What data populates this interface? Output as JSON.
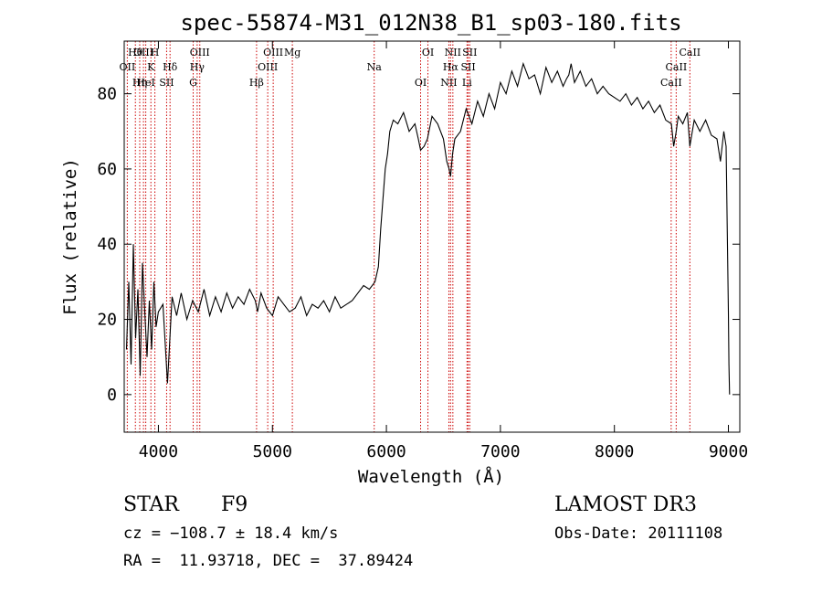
{
  "chart_data": {
    "type": "line",
    "title": "spec-55874-M31_012N38_B1_sp03-180.fits",
    "xlabel": "Wavelength (Å)",
    "ylabel": "Flux (relative)",
    "xlim": [
      3700,
      9100
    ],
    "ylim": [
      -10,
      94
    ],
    "xticks": [
      4000,
      5000,
      6000,
      7000,
      8000,
      9000
    ],
    "yticks": [
      0,
      20,
      40,
      60,
      80
    ],
    "series": [
      {
        "name": "flux",
        "x": [
          3720,
          3740,
          3760,
          3780,
          3800,
          3820,
          3840,
          3860,
          3880,
          3900,
          3920,
          3940,
          3960,
          3980,
          4000,
          4040,
          4080,
          4120,
          4160,
          4200,
          4250,
          4300,
          4350,
          4400,
          4450,
          4500,
          4550,
          4600,
          4650,
          4700,
          4750,
          4800,
          4850,
          4870,
          4900,
          4950,
          5000,
          5050,
          5100,
          5150,
          5200,
          5250,
          5300,
          5350,
          5400,
          5450,
          5500,
          5550,
          5600,
          5650,
          5700,
          5750,
          5800,
          5850,
          5900,
          5930,
          5950,
          5970,
          5990,
          6010,
          6030,
          6060,
          6100,
          6150,
          6200,
          6250,
          6280,
          6300,
          6330,
          6360,
          6400,
          6450,
          6500,
          6530,
          6550,
          6563,
          6580,
          6600,
          6650,
          6700,
          6750,
          6800,
          6850,
          6900,
          6950,
          7000,
          7050,
          7100,
          7150,
          7200,
          7250,
          7300,
          7350,
          7400,
          7450,
          7500,
          7550,
          7580,
          7600,
          7620,
          7650,
          7700,
          7750,
          7800,
          7850,
          7900,
          7950,
          8000,
          8050,
          8100,
          8150,
          8200,
          8250,
          8300,
          8350,
          8400,
          8450,
          8500,
          8520,
          8542,
          8560,
          8600,
          8640,
          8662,
          8700,
          8750,
          8800,
          8850,
          8900,
          8930,
          8960,
          8980,
          9000,
          9005,
          9010
        ],
        "values": [
          12,
          30,
          8,
          40,
          15,
          28,
          5,
          35,
          22,
          10,
          25,
          12,
          30,
          18,
          22,
          24,
          3,
          26,
          21,
          27,
          20,
          25,
          22,
          28,
          21,
          26,
          22,
          27,
          23,
          26,
          24,
          28,
          25,
          22,
          27,
          23,
          21,
          26,
          24,
          22,
          23,
          26,
          21,
          24,
          23,
          25,
          22,
          26,
          23,
          24,
          25,
          27,
          29,
          28,
          30,
          34,
          44,
          52,
          60,
          64,
          70,
          73,
          72,
          75,
          70,
          72,
          68,
          65,
          66,
          68,
          74,
          72,
          68,
          62,
          60,
          58,
          64,
          68,
          70,
          76,
          72,
          78,
          74,
          80,
          76,
          83,
          80,
          86,
          82,
          88,
          84,
          85,
          80,
          87,
          83,
          86,
          82,
          84,
          85,
          88,
          83,
          86,
          82,
          84,
          80,
          82,
          80,
          79,
          78,
          80,
          77,
          79,
          76,
          78,
          75,
          77,
          73,
          72,
          66,
          70,
          74,
          72,
          75,
          66,
          73,
          70,
          73,
          69,
          68,
          62,
          70,
          66,
          22,
          8,
          0
        ],
        "color": "#000000"
      }
    ],
    "reference_lines": [
      {
        "label": "Hθ",
        "wavelength": 3798
      },
      {
        "label": "OII",
        "wavelength": 3727
      },
      {
        "label": "Hη",
        "wavelength": 3836
      },
      {
        "label": "OIII",
        "wavelength": 3869
      },
      {
        "label": "K",
        "wavelength": 3934
      },
      {
        "label": "HeI",
        "wavelength": 3889
      },
      {
        "label": "H",
        "wavelength": 3969
      },
      {
        "label": "Hδ",
        "wavelength": 4102
      },
      {
        "label": "SII",
        "wavelength": 4072
      },
      {
        "label": "OIII",
        "wavelength": 4363
      },
      {
        "label": "Hγ",
        "wavelength": 4340
      },
      {
        "label": "G",
        "wavelength": 4305
      },
      {
        "label": "OIII",
        "wavelength": 5007
      },
      {
        "label": "OIII",
        "wavelength": 4959
      },
      {
        "label": "Hβ",
        "wavelength": 4861
      },
      {
        "label": "Mg",
        "wavelength": 5175
      },
      {
        "label": "Na",
        "wavelength": 5893
      },
      {
        "label": "OI",
        "wavelength": 6300
      },
      {
        "label": "OI",
        "wavelength": 6364
      },
      {
        "label": "Hα",
        "wavelength": 6563
      },
      {
        "label": "NII",
        "wavelength": 6548
      },
      {
        "label": "NII",
        "wavelength": 6583
      },
      {
        "label": "SII",
        "wavelength": 6717
      },
      {
        "label": "Li",
        "wavelength": 6707
      },
      {
        "label": "SII",
        "wavelength": 6731
      },
      {
        "label": "CaII",
        "wavelength": 8542
      },
      {
        "label": "CaII",
        "wavelength": 8498
      },
      {
        "label": "CaII",
        "wavelength": 8662
      }
    ],
    "line_color": "#cc0000"
  },
  "info": {
    "class": "STAR",
    "subclass": "F9",
    "survey": "LAMOST DR3",
    "cz": "cz = −108.7 ± 18.4 km/s",
    "obs_date": "Obs-Date: 20111108",
    "coords": "RA =  11.93718, DEC =  37.89424"
  }
}
